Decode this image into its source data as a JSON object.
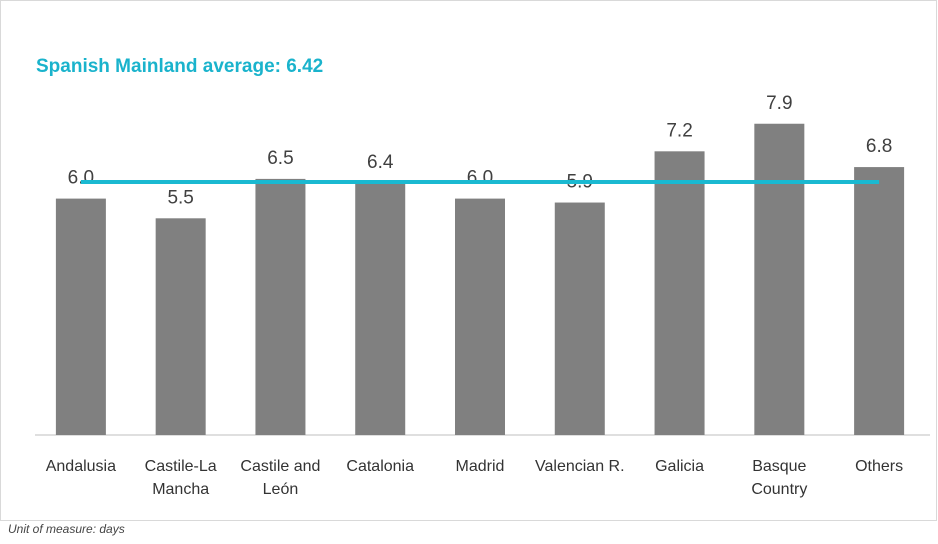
{
  "chart_data": {
    "type": "bar",
    "categories": [
      "Andalusia",
      "Castile-La Mancha",
      "Castile and León",
      "Catalonia",
      "Madrid",
      "Valencian R.",
      "Galicia",
      "Basque Country",
      "Others"
    ],
    "values": [
      6.0,
      5.5,
      6.5,
      6.4,
      6.0,
      5.9,
      7.2,
      7.9,
      6.8
    ],
    "value_labels": [
      "6.0",
      "5.5",
      "6.5",
      "6.4",
      "6.0",
      "5.9",
      "7.2",
      "7.9",
      "6.8"
    ],
    "color": "#808080",
    "average": {
      "text": "Spanish Mainland average: 6.42",
      "value": 6.42,
      "color": "#1ab9d1"
    },
    "ylim": [
      0,
      10
    ],
    "footnote": "Unit of measure: days"
  }
}
